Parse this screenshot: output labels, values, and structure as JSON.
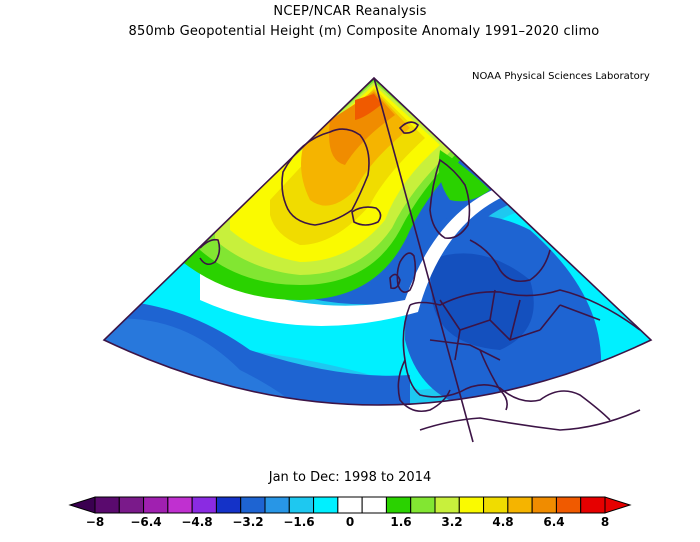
{
  "header": {
    "title": "NCEP/NCAR Reanalysis",
    "subtitle": "850mb Geopotential Height (m) Composite Anomaly 1991–2020 climo",
    "credit": "NOAA Physical Sciences Laboratory"
  },
  "footer": {
    "date_range": "Jan to Dec: 1998 to 2014"
  },
  "colorbar": {
    "tick_labels": [
      "−8",
      "−6.4",
      "−4.8",
      "−3.2",
      "−1.6",
      "0",
      "1.6",
      "3.2",
      "4.8",
      "6.4",
      "8"
    ],
    "colors": [
      "#5a0a6e",
      "#7a1a8a",
      "#a020b0",
      "#c030d0",
      "#8a2be2",
      "#1432c8",
      "#1e64d2",
      "#2896e6",
      "#1ec8f0",
      "#00f0ff",
      "#ffffff",
      "#ffffff",
      "#2ad200",
      "#82e632",
      "#c8f03c",
      "#fafa00",
      "#f0dc00",
      "#f5b400",
      "#f08c00",
      "#f05a00",
      "#e60000"
    ]
  },
  "map_legend": {
    "field": "850mb geopotential height anomaly",
    "units": "m"
  }
}
